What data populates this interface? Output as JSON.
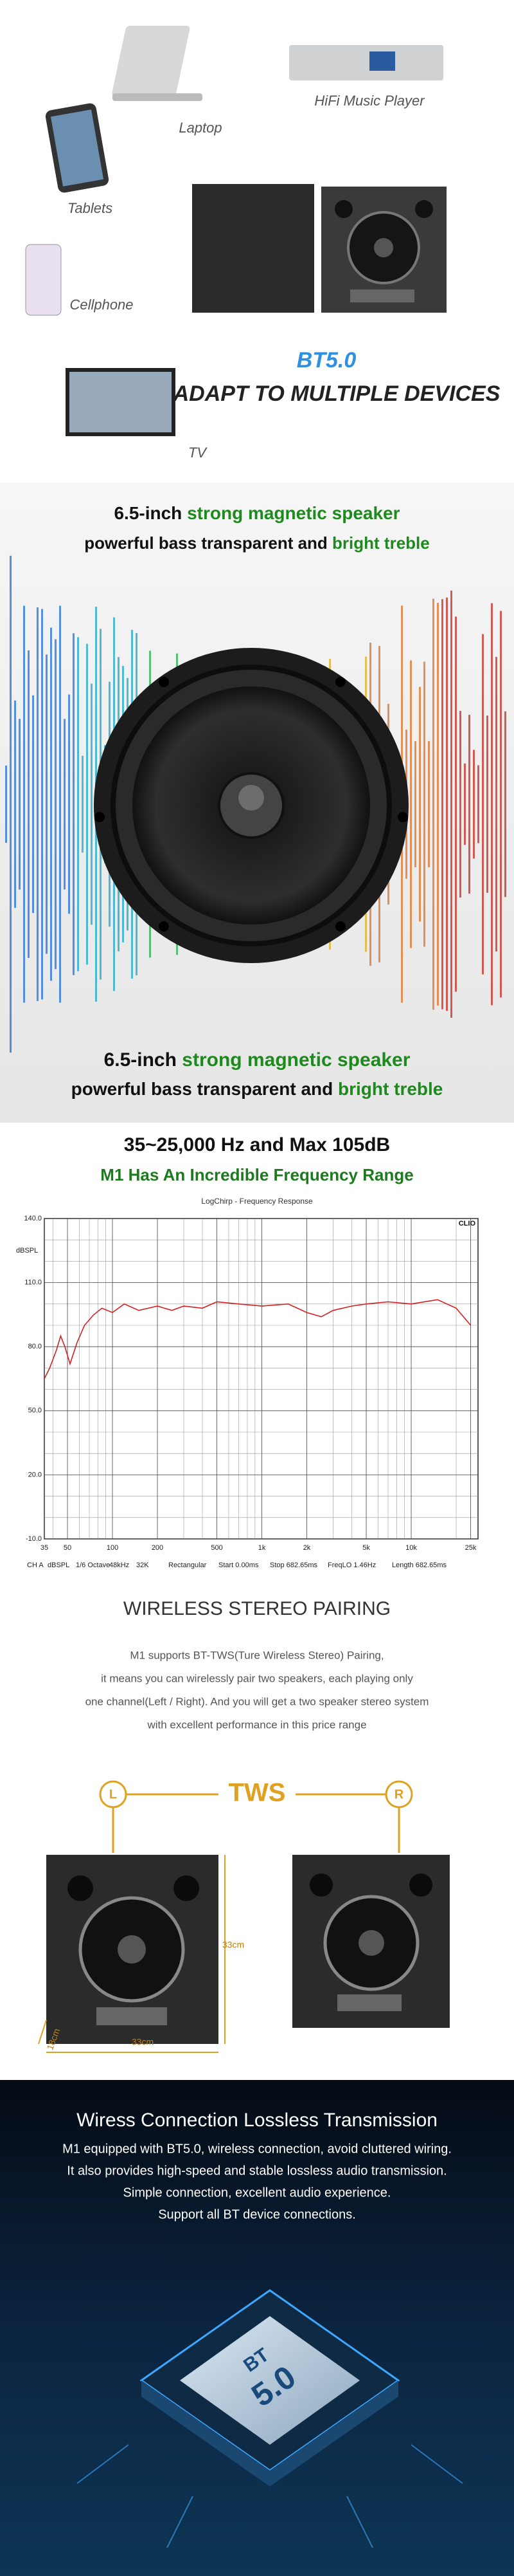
{
  "devices": {
    "laptop": "Laptop",
    "hifi": "HiFi Music Player",
    "tablets": "Tablets",
    "cellphone": "Cellphone",
    "tv": "TV",
    "bt": "BT5.0",
    "headline": "ADAPT TO MULTIPLE DEVICES"
  },
  "driver": {
    "top": {
      "size": "6.5-inch",
      "title": "strong magnetic speaker",
      "line_a": "powerful bass transparent and",
      "line_b": "bright treble"
    },
    "bottom": {
      "size": "6.5-inch",
      "title": "strong magnetic speaker",
      "line_a": "powerful bass transparent and",
      "line_b": "bright treble"
    }
  },
  "frequency": {
    "heading": "35~25,000 Hz and Max 105dB",
    "subheading": "M1 Has An Incredible Frequency Range",
    "chart_data": {
      "type": "line",
      "title": "LogChirp - Frequency Response",
      "y_label": "dBSPL",
      "brand": "CLIO",
      "xscale": "log",
      "xlim": [
        35,
        28000
      ],
      "ylim": [
        -10,
        140
      ],
      "xticks": [
        35,
        50,
        100,
        200,
        500,
        {
          "value": 1000,
          "label": "1k"
        },
        {
          "value": 2000,
          "label": "2k"
        },
        {
          "value": 5000,
          "label": "5k"
        },
        {
          "value": 10000,
          "label": "10k"
        },
        {
          "value": 25000,
          "label": "25k"
        }
      ],
      "xminor": [
        40,
        60,
        70,
        80,
        90,
        300,
        400,
        600,
        700,
        800,
        900,
        3000,
        4000,
        6000,
        7000,
        8000,
        9000,
        20000
      ],
      "yticks": [
        {
          "value": 140,
          "label": "140.0"
        },
        {
          "value": 110,
          "label": "110.0"
        },
        {
          "value": 80,
          "label": "80.0"
        },
        {
          "value": 50,
          "label": "50.0"
        },
        {
          "value": 20,
          "label": "20.0"
        },
        {
          "value": -10,
          "label": "-10.0"
        }
      ],
      "yminor": [
        130,
        120,
        100,
        90,
        70,
        60,
        40,
        30,
        10,
        0
      ],
      "grid": true,
      "x": [
        35,
        38,
        42,
        45,
        48,
        52,
        58,
        65,
        75,
        85,
        100,
        120,
        150,
        200,
        250,
        300,
        400,
        500,
        700,
        1000,
        1500,
        2000,
        2500,
        3000,
        4000,
        5000,
        7000,
        10000,
        15000,
        20000,
        25000
      ],
      "series": [
        {
          "color": "#d42020",
          "values": [
            65,
            70,
            78,
            85,
            80,
            72,
            82,
            90,
            95,
            98,
            96,
            100,
            97,
            99,
            97,
            99,
            98,
            101,
            100,
            99,
            100,
            96,
            94,
            97,
            99,
            100,
            101,
            100,
            102,
            98,
            90
          ]
        }
      ],
      "footer": [
        "CH A",
        "dBSPL",
        "1/6 Octave",
        "48kHz",
        "32K",
        "Rectangular",
        "Start 0.00ms",
        "Stop 682.65ms",
        "FreqLO 1.46Hz",
        "Length 682.65ms"
      ]
    }
  },
  "pairing": {
    "title": "WIRELESS STEREO PAIRING",
    "lines": [
      "M1 supports BT-TWS(Ture Wireless Stereo) Pairing,",
      "it means you can wirelessly pair two speakers, each playing only",
      "one channel(Left / Right). And you will get a two speaker stereo system",
      "with excellent performance in this price range"
    ],
    "tws": "TWS",
    "left": "L",
    "right": "R",
    "height": "33cm",
    "width": "33cm",
    "depth": "18cm"
  },
  "wireless": {
    "title": "Wiress Connection Lossless Transmission",
    "lines": [
      "M1 equipped with BT5.0, wireless connection, avoid cluttered wiring.",
      "It also provides high-speed and stable lossless audio transmission.",
      "Simple connection, excellent audio experience.",
      "Support all BT device connections."
    ],
    "chip_top": "BT",
    "chip_main": "5.0"
  }
}
